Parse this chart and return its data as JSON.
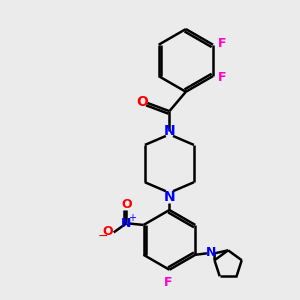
{
  "background_color": "#ebebeb",
  "bond_color": "#000000",
  "N_color": "#0000ff",
  "O_color": "#ff0000",
  "F_color": "#ff00cc",
  "line_width": 1.8,
  "figsize": [
    3.0,
    3.0
  ],
  "dpi": 100,
  "xlim": [
    0,
    10
  ],
  "ylim": [
    0,
    10
  ]
}
